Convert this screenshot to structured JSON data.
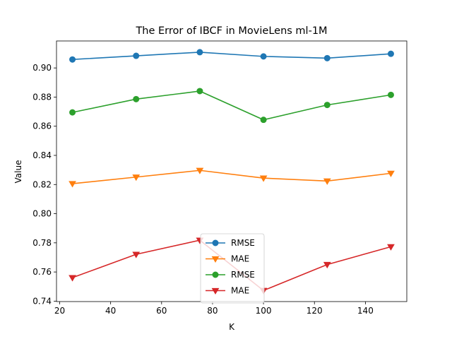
{
  "chart_data": {
    "type": "line",
    "title": "The Error of IBCF in MovieLens ml-1M",
    "xlabel": "K",
    "ylabel": "Value",
    "xlim": [
      18.75,
      156.25
    ],
    "ylim": [
      0.7397,
      0.9185
    ],
    "xticks": [
      20,
      40,
      60,
      80,
      100,
      120,
      140
    ],
    "yticks": [
      0.74,
      0.76,
      0.78,
      0.8,
      0.82,
      0.84,
      0.86,
      0.88,
      0.9
    ],
    "ytick_labels": [
      "0.74",
      "0.76",
      "0.78",
      "0.80",
      "0.82",
      "0.84",
      "0.86",
      "0.88",
      "0.90"
    ],
    "x": [
      25,
      50,
      75,
      100,
      125,
      150
    ],
    "grid": false,
    "legend_position": "lower-center",
    "series": [
      {
        "name": "RMSE",
        "color": "#1f77b4",
        "marker": "circle",
        "values": [
          0.9058,
          0.9083,
          0.9108,
          0.9079,
          0.9067,
          0.9097
        ]
      },
      {
        "name": "MAE",
        "color": "#ff7f0e",
        "marker": "triangle-down",
        "values": [
          0.8206,
          0.8251,
          0.8297,
          0.8244,
          0.8224,
          0.8277
        ]
      },
      {
        "name": "RMSE",
        "color": "#2ca02c",
        "marker": "circle",
        "values": [
          0.8695,
          0.8786,
          0.8841,
          0.8644,
          0.8746,
          0.8815
        ]
      },
      {
        "name": "MAE",
        "color": "#d62728",
        "marker": "triangle-down",
        "values": [
          0.7561,
          0.7721,
          0.7818,
          0.7473,
          0.7651,
          0.7773
        ]
      }
    ]
  }
}
